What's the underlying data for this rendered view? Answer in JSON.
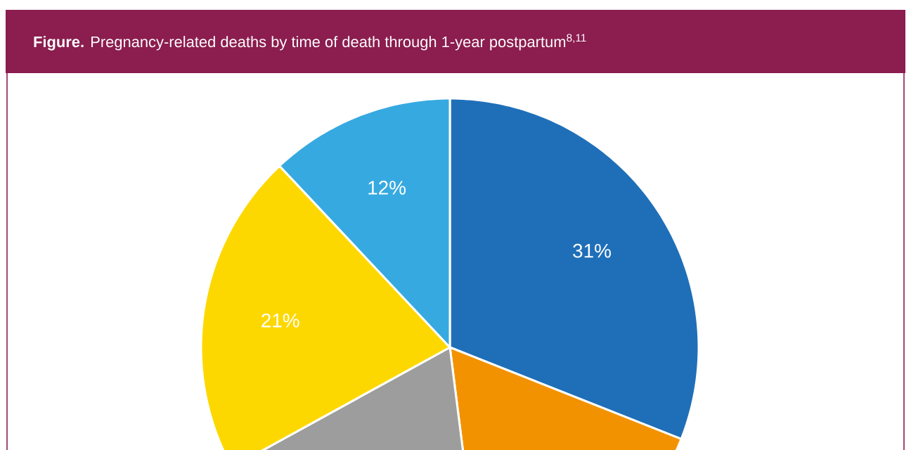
{
  "chart_data": {
    "type": "pie",
    "title": "**Figure.** Pregnancy-related deaths by time of death through 1-year postpartum$^{8,11}$",
    "categories": [
      null,
      null,
      null,
      null,
      null
    ],
    "values": [
      31,
      17,
      19,
      21,
      12
    ],
    "colors": [
      "#1f6fb8",
      "#f39200",
      "#9d9d9d",
      "#fdd800",
      "#36a9e1"
    ],
    "value_labels": [
      "31%",
      null,
      null,
      "21%",
      "12%"
    ]
  }
}
